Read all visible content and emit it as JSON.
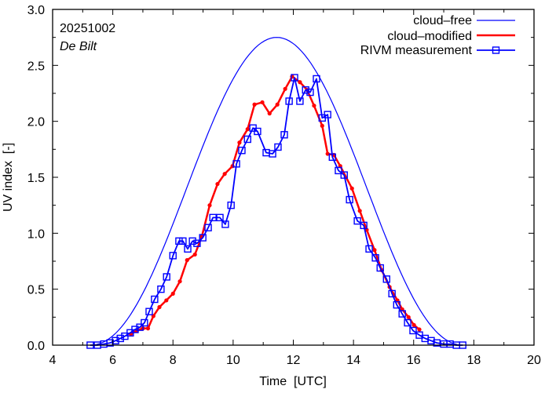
{
  "chart_data": {
    "type": "line",
    "title": "",
    "annotations": {
      "date": "20251002",
      "location": "De Bilt"
    },
    "xlabel": "Time  [UTC]",
    "ylabel": "UV index  [-]",
    "xlim": [
      4,
      20
    ],
    "ylim": [
      0.0,
      3.0
    ],
    "xticks": [
      4,
      6,
      8,
      10,
      12,
      14,
      16,
      18,
      20
    ],
    "xtick_labels": [
      "4",
      "6",
      "8",
      "10",
      "12",
      "14",
      "16",
      "18",
      "20"
    ],
    "yticks": [
      0.0,
      0.5,
      1.0,
      1.5,
      2.0,
      2.5,
      3.0
    ],
    "ytick_labels": [
      "0.0",
      "0.5",
      "1.0",
      "1.5",
      "2.0",
      "2.5",
      "3.0"
    ],
    "legend_position": "top-right",
    "grid": false,
    "series": [
      {
        "name": "cloud–free",
        "color": "#0000ff",
        "style": "thin-line",
        "peak_time": 11.45,
        "peak_value": 2.75,
        "start_time": 5.25,
        "end_time": 17.65
      },
      {
        "name": "cloud–modified",
        "color": "#ff0000",
        "style": "thick-line-dots",
        "x": [
          6.6,
          6.8,
          7.0,
          7.17,
          7.35,
          7.55,
          7.78,
          8.0,
          8.23,
          8.47,
          8.73,
          8.96,
          9.22,
          9.48,
          9.72,
          9.98,
          10.21,
          10.48,
          10.71,
          10.97,
          11.21,
          11.47,
          11.73,
          11.96,
          12.22,
          12.46,
          12.69,
          12.96,
          13.14,
          13.35,
          13.56,
          13.95,
          14.21,
          14.44,
          14.7,
          14.94,
          15.2,
          15.46,
          15.62,
          15.83,
          16.01,
          16.19
        ],
        "y": [
          0.1,
          0.13,
          0.15,
          0.15,
          0.26,
          0.34,
          0.4,
          0.46,
          0.57,
          0.76,
          0.81,
          0.97,
          1.25,
          1.44,
          1.53,
          1.6,
          1.81,
          1.93,
          2.15,
          2.17,
          2.07,
          2.15,
          2.29,
          2.4,
          2.35,
          2.28,
          2.14,
          1.96,
          1.71,
          1.7,
          1.6,
          1.4,
          1.2,
          1.03,
          0.85,
          0.67,
          0.52,
          0.4,
          0.32,
          0.25,
          0.18,
          0.14
        ]
      },
      {
        "name": "RIVM measurement",
        "color": "#0000ff",
        "style": "line-squares",
        "x": [
          5.25,
          5.49,
          5.7,
          5.91,
          6.09,
          6.25,
          6.4,
          6.58,
          6.74,
          6.9,
          7.05,
          7.21,
          7.39,
          7.6,
          7.79,
          8.0,
          8.2,
          8.33,
          8.49,
          8.65,
          8.8,
          8.99,
          9.17,
          9.33,
          9.56,
          9.74,
          9.93,
          10.11,
          10.29,
          10.48,
          10.66,
          10.81,
          11.1,
          11.31,
          11.49,
          11.7,
          11.86,
          12.04,
          12.22,
          12.41,
          12.56,
          12.77,
          12.96,
          13.14,
          13.3,
          13.5,
          13.69,
          13.87,
          14.13,
          14.34,
          14.52,
          14.73,
          14.89,
          15.1,
          15.28,
          15.44,
          15.62,
          15.8,
          15.98,
          16.19,
          16.38,
          16.58,
          16.77,
          17.0,
          17.21,
          17.42,
          17.63
        ],
        "y": [
          0.0,
          0.0,
          0.01,
          0.02,
          0.04,
          0.06,
          0.08,
          0.11,
          0.14,
          0.16,
          0.2,
          0.3,
          0.41,
          0.5,
          0.61,
          0.8,
          0.93,
          0.93,
          0.86,
          0.93,
          0.91,
          0.96,
          1.05,
          1.14,
          1.14,
          1.08,
          1.25,
          1.62,
          1.74,
          1.84,
          1.94,
          1.91,
          1.72,
          1.71,
          1.77,
          1.88,
          2.18,
          2.39,
          2.18,
          2.28,
          2.26,
          2.38,
          2.03,
          2.06,
          1.68,
          1.56,
          1.52,
          1.3,
          1.11,
          1.07,
          0.86,
          0.78,
          0.69,
          0.59,
          0.46,
          0.36,
          0.28,
          0.2,
          0.13,
          0.09,
          0.06,
          0.04,
          0.02,
          0.01,
          0.01,
          0.0,
          0.0
        ]
      }
    ]
  }
}
